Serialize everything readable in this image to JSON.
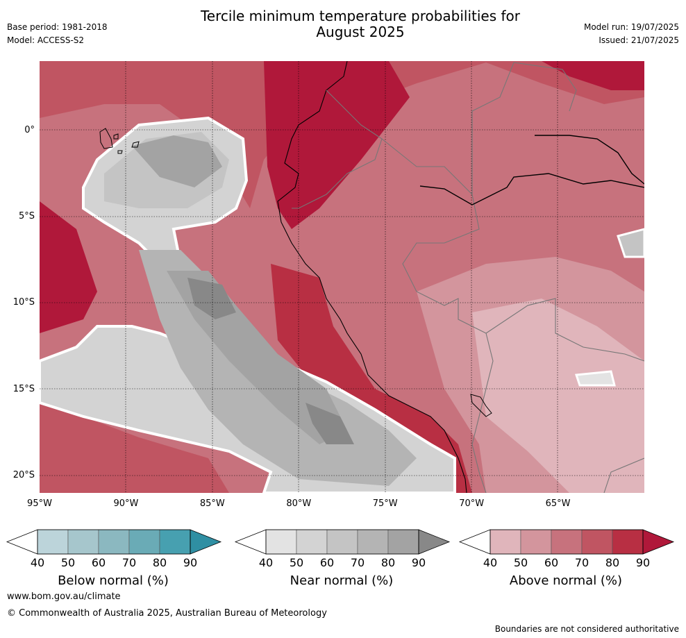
{
  "header": {
    "title_line1": "Tercile minimum temperature probabilities for",
    "title_line2": "August 2025",
    "base_period": "Base period: 1981-2018",
    "model": "Model: ACCESS-S2",
    "model_run": "Model run: 19/07/2025",
    "issued": "Issued: 21/07/2025"
  },
  "map": {
    "lon_labels": [
      "95°W",
      "90°W",
      "85°W",
      "80°W",
      "75°W",
      "70°W",
      "65°W"
    ],
    "lat_labels": [
      "0°",
      "5°S",
      "10°S",
      "15°S",
      "20°S"
    ],
    "lon_range": [
      -95,
      -60
    ],
    "lat_range": [
      -21,
      4
    ]
  },
  "colorbars": [
    {
      "name": "below",
      "title": "Below normal (%)",
      "ticks": [
        "40",
        "50",
        "60",
        "70",
        "80",
        "90"
      ],
      "colors": [
        "#bcd4da",
        "#a6c6cc",
        "#8bb8c0",
        "#6aabb6",
        "#47a0b0",
        "#2f8fa3"
      ]
    },
    {
      "name": "near",
      "title": "Near normal (%)",
      "ticks": [
        "40",
        "50",
        "60",
        "70",
        "80",
        "90"
      ],
      "colors": [
        "#e3e3e3",
        "#d3d3d3",
        "#c4c4c4",
        "#b4b4b4",
        "#a3a3a3",
        "#888888"
      ]
    },
    {
      "name": "above",
      "title": "Above normal (%)",
      "ticks": [
        "40",
        "50",
        "60",
        "70",
        "80",
        "90"
      ],
      "colors": [
        "#e0b5bb",
        "#d3959d",
        "#c7727d",
        "#c05562",
        "#b82f43",
        "#b0183a"
      ]
    }
  ],
  "footer": {
    "url": "www.bom.gov.au/climate",
    "copyright": "© Commonwealth of Australia 2025, Australian Bureau of Meteorology",
    "disclaimer": "Boundaries are not considered authoritative"
  }
}
